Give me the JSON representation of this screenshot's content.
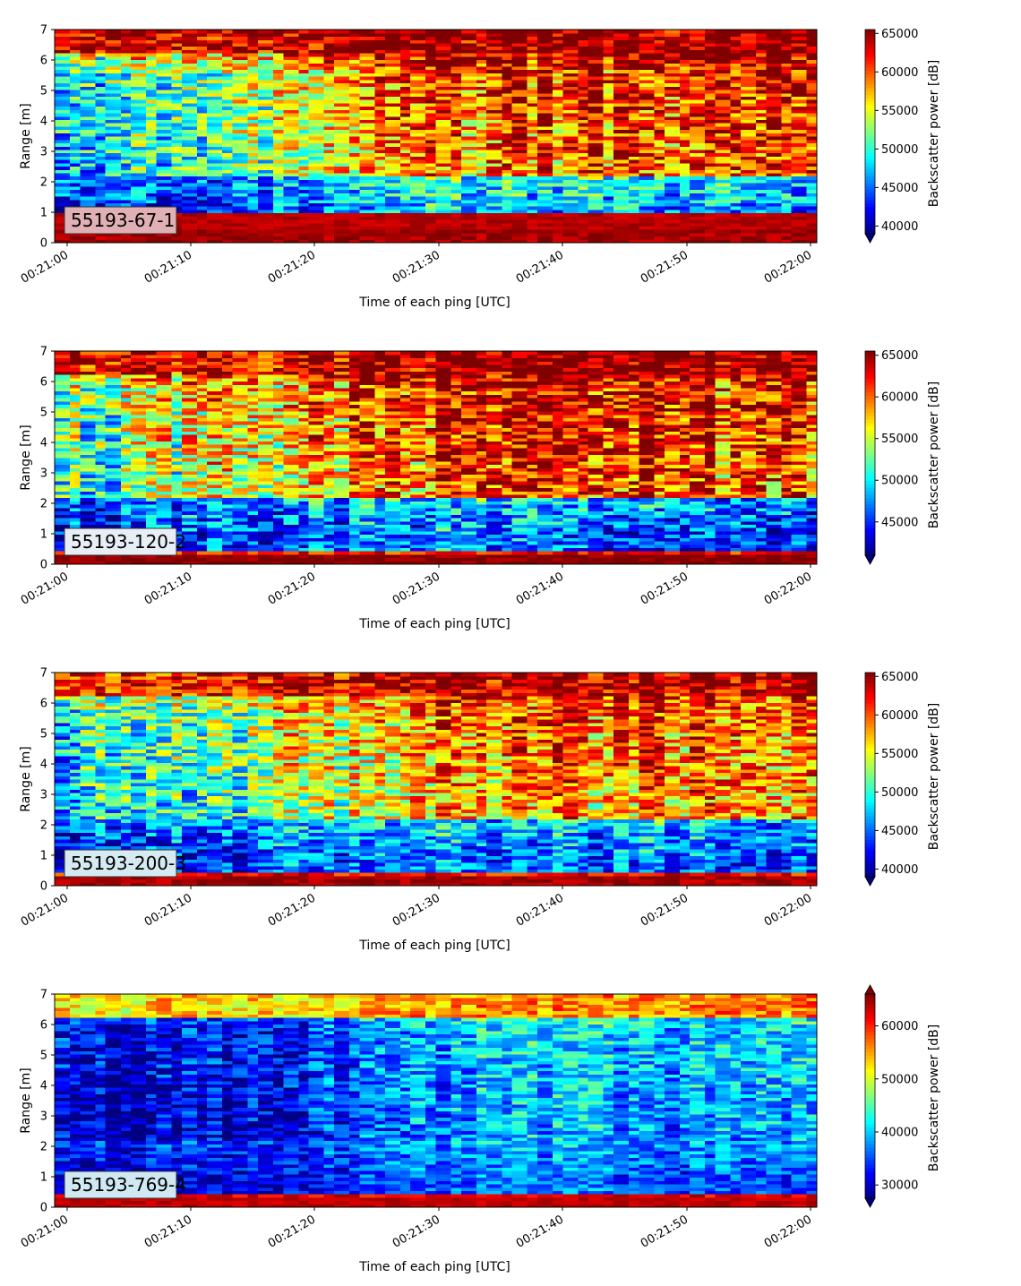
{
  "chart_data": [
    {
      "type": "heatmap",
      "tag": "55193-67-1",
      "xlabel": "Time of each ping [UTC]",
      "ylabel": "Range [m]",
      "colorbar_label": "Backscatter power [dB]",
      "colormap": "jet",
      "ylim": [
        0,
        7
      ],
      "yticks": [
        "0",
        "1",
        "2",
        "3",
        "4",
        "5",
        "6",
        "7"
      ],
      "xticks": [
        "00:21:00",
        "00:21:10",
        "00:21:20",
        "00:21:30",
        "00:21:40",
        "00:21:50",
        "00:22:00"
      ],
      "clim": [
        39000,
        65500
      ],
      "cbar_ticks": [
        40000,
        45000,
        50000,
        55000,
        60000,
        65000
      ],
      "cbar_tick_labels": [
        "40000",
        "45000",
        "50000",
        "55000",
        "60000",
        "65000"
      ],
      "cbar_extend": "min",
      "tag_bg": "#e0b0b4",
      "profile": {
        "time_s": [
          0,
          10,
          20,
          30,
          40,
          50,
          60
        ],
        "band_bottom": [
          63000,
          63000,
          63000,
          63000,
          63000,
          63000,
          63000
        ],
        "band_low": [
          42000,
          43000,
          45000,
          47000,
          47000,
          46000,
          45000
        ],
        "band_mid": [
          46000,
          50000,
          54000,
          58000,
          59000,
          59000,
          59000
        ],
        "band_upper": [
          50000,
          54000,
          57000,
          60000,
          61000,
          61000,
          61000
        ],
        "band_top": [
          63000,
          63000,
          64000,
          65000,
          65000,
          65000,
          65000
        ]
      }
    },
    {
      "type": "heatmap",
      "tag": "55193-120-2",
      "xlabel": "Time of each ping [UTC]",
      "ylabel": "Range [m]",
      "colorbar_label": "Backscatter power [dB]",
      "colormap": "jet",
      "ylim": [
        0,
        7
      ],
      "yticks": [
        "0",
        "1",
        "2",
        "3",
        "4",
        "5",
        "6",
        "7"
      ],
      "xticks": [
        "00:21:00",
        "00:21:10",
        "00:21:20",
        "00:21:30",
        "00:21:40",
        "00:21:50",
        "00:22:00"
      ],
      "clim": [
        41000,
        65500
      ],
      "cbar_ticks": [
        45000,
        50000,
        55000,
        60000,
        65000
      ],
      "cbar_tick_labels": [
        "45000",
        "50000",
        "55000",
        "60000",
        "65000"
      ],
      "cbar_extend": "min",
      "tag_bg": "#e8eef6",
      "profile": {
        "time_s": [
          0,
          10,
          20,
          30,
          40,
          50,
          60
        ],
        "band_bottom": [
          64000,
          64000,
          64000,
          64000,
          64000,
          64000,
          64000
        ],
        "band_low": [
          43000,
          45000,
          46000,
          47000,
          46000,
          45000,
          45000
        ],
        "band_mid": [
          50000,
          54000,
          57000,
          60000,
          61000,
          60000,
          60000
        ],
        "band_upper": [
          52000,
          56000,
          58000,
          61000,
          62000,
          61000,
          61000
        ],
        "band_top": [
          63000,
          63000,
          64000,
          65000,
          65000,
          65000,
          65000
        ]
      }
    },
    {
      "type": "heatmap",
      "tag": "55193-200-3",
      "xlabel": "Time of each ping [UTC]",
      "ylabel": "Range [m]",
      "colorbar_label": "Backscatter power [dB]",
      "colormap": "jet",
      "ylim": [
        0,
        7
      ],
      "yticks": [
        "0",
        "1",
        "2",
        "3",
        "4",
        "5",
        "6",
        "7"
      ],
      "xticks": [
        "00:21:00",
        "00:21:10",
        "00:21:20",
        "00:21:30",
        "00:21:40",
        "00:21:50",
        "00:22:00"
      ],
      "clim": [
        39000,
        65500
      ],
      "cbar_ticks": [
        40000,
        45000,
        50000,
        55000,
        60000,
        65000
      ],
      "cbar_tick_labels": [
        "40000",
        "45000",
        "50000",
        "55000",
        "60000",
        "65000"
      ],
      "cbar_extend": "min",
      "tag_bg": "#d6eaf2",
      "profile": {
        "time_s": [
          0,
          10,
          20,
          30,
          40,
          50,
          60
        ],
        "band_bottom": [
          63000,
          63000,
          63000,
          63000,
          63000,
          63000,
          63000
        ],
        "band_low": [
          42000,
          44000,
          45000,
          46000,
          45000,
          45000,
          44000
        ],
        "band_mid": [
          47000,
          50000,
          53000,
          57000,
          58000,
          58000,
          58000
        ],
        "band_upper": [
          49000,
          52000,
          54000,
          58000,
          59000,
          59000,
          59000
        ],
        "band_top": [
          61000,
          62000,
          63000,
          64000,
          64000,
          64000,
          64000
        ]
      }
    },
    {
      "type": "heatmap",
      "tag": "55193-769-4",
      "xlabel": "Time of each ping [UTC]",
      "ylabel": "Range [m]",
      "colorbar_label": "Backscatter power [dB]",
      "colormap": "jet",
      "ylim": [
        0,
        7
      ],
      "yticks": [
        "0",
        "1",
        "2",
        "3",
        "4",
        "5",
        "6",
        "7"
      ],
      "xticks": [
        "00:21:00",
        "00:21:10",
        "00:21:20",
        "00:21:30",
        "00:21:40",
        "00:21:50",
        "00:22:00"
      ],
      "clim": [
        27500,
        66000
      ],
      "cbar_ticks": [
        30000,
        40000,
        50000,
        60000
      ],
      "cbar_tick_labels": [
        "30000",
        "40000",
        "50000",
        "60000"
      ],
      "cbar_extend": "both",
      "tag_bg": "#cfe8f2",
      "profile": {
        "time_s": [
          0,
          10,
          20,
          30,
          40,
          50,
          60
        ],
        "band_bottom": [
          62000,
          62000,
          62000,
          62000,
          62000,
          62000,
          62000
        ],
        "band_low": [
          30000,
          31000,
          33000,
          36000,
          37000,
          35000,
          35000
        ],
        "band_mid": [
          29000,
          30000,
          33000,
          37000,
          39000,
          38000,
          38000
        ],
        "band_upper": [
          30000,
          31000,
          34000,
          38000,
          40000,
          39000,
          39000
        ],
        "band_top": [
          52000,
          53000,
          54000,
          55000,
          56000,
          56000,
          56000
        ]
      }
    }
  ]
}
